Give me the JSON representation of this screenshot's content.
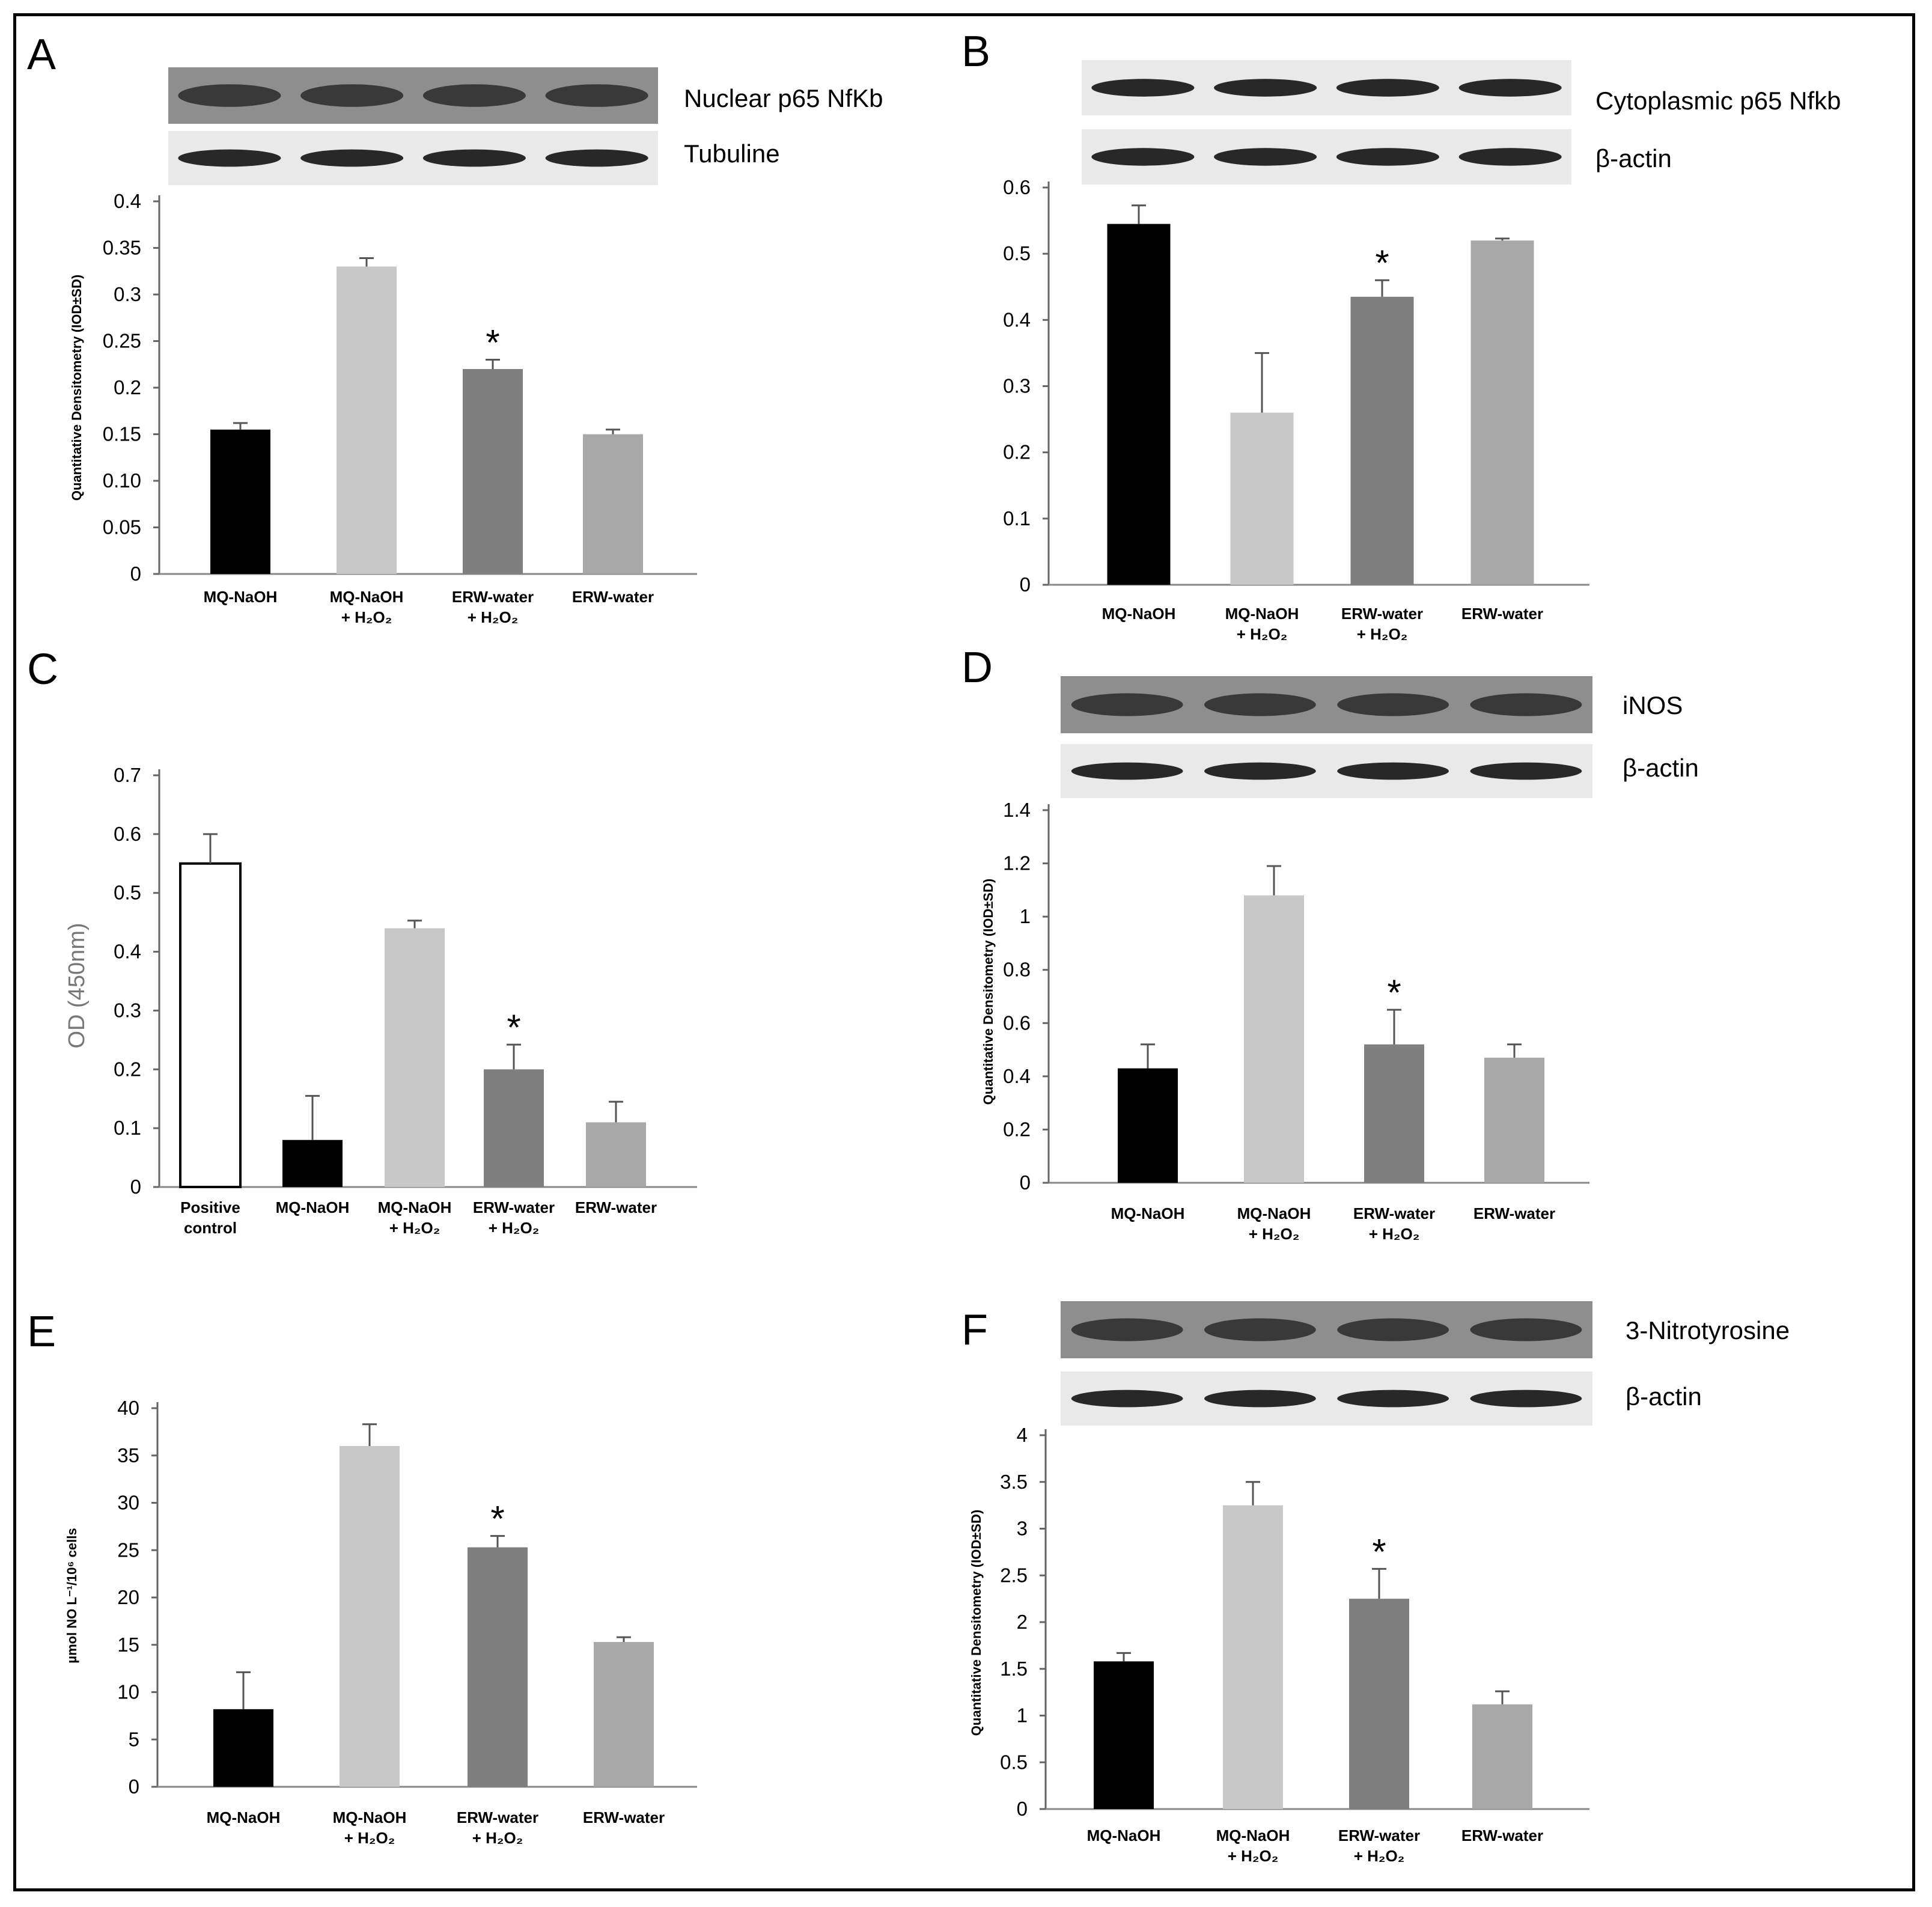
{
  "chart_data": [
    {
      "panel": "A",
      "type": "bar",
      "blots": [
        {
          "name": "Nuclear p65 NfKb"
        },
        {
          "name": "Tubuline"
        }
      ],
      "ylabel": "Quantitative Densitometry (IOD±SD)",
      "yticks": [
        "0",
        "0.05",
        "0.10",
        "0.15",
        "0.2",
        "0.25",
        "0.3",
        "0.35",
        "0.4"
      ],
      "ylim": [
        0,
        0.4
      ],
      "categories": [
        [
          "MQ-NaOH",
          ""
        ],
        [
          "MQ-NaOH",
          "+ H₂O₂"
        ],
        [
          "ERW-water",
          "+ H₂O₂"
        ],
        [
          "ERW-water",
          ""
        ]
      ],
      "values": [
        0.155,
        0.33,
        0.22,
        0.15
      ],
      "errors": [
        0.007,
        0.009,
        0.01,
        0.005
      ],
      "colors": [
        "#000000",
        "#c8c8c8",
        "#7f7f7f",
        "#a8a8a8"
      ],
      "significance": [
        "",
        "",
        "*",
        ""
      ]
    },
    {
      "panel": "B",
      "type": "bar",
      "blots": [
        {
          "name": "Cytoplasmic p65 Nfkb"
        },
        {
          "name": "β-actin"
        }
      ],
      "ylabel": "",
      "yticks": [
        "0",
        "0.1",
        "0.2",
        "0.3",
        "0.4",
        "0.5",
        "0.6"
      ],
      "ylim": [
        0,
        0.6
      ],
      "categories": [
        [
          "MQ-NaOH",
          ""
        ],
        [
          "MQ-NaOH",
          "+ H₂O₂"
        ],
        [
          "ERW-water",
          "+ H₂O₂"
        ],
        [
          "ERW-water",
          ""
        ]
      ],
      "values": [
        0.545,
        0.26,
        0.435,
        0.52
      ],
      "errors": [
        0.028,
        0.09,
        0.025,
        0.003
      ],
      "colors": [
        "#000000",
        "#c8c8c8",
        "#7f7f7f",
        "#a8a8a8"
      ],
      "significance": [
        "",
        "",
        "*",
        ""
      ]
    },
    {
      "panel": "C",
      "type": "bar",
      "blots": [],
      "ylabel": "OD (450nm)",
      "yticks": [
        "0",
        "0.1",
        "0.2",
        "0.3",
        "0.4",
        "0.5",
        "0.6",
        "0.7"
      ],
      "ylim": [
        0,
        0.7
      ],
      "categories": [
        [
          "Positive",
          "control"
        ],
        [
          "MQ-NaOH",
          ""
        ],
        [
          "MQ-NaOH",
          "+ H₂O₂"
        ],
        [
          "ERW-water",
          "+ H₂O₂"
        ],
        [
          "ERW-water",
          ""
        ]
      ],
      "values": [
        0.55,
        0.08,
        0.44,
        0.2,
        0.11
      ],
      "errors": [
        0.05,
        0.075,
        0.013,
        0.042,
        0.035
      ],
      "colors": [
        "#ffffff",
        "#000000",
        "#c8c8c8",
        "#7f7f7f",
        "#a8a8a8"
      ],
      "significance": [
        "",
        "",
        "",
        "*",
        ""
      ]
    },
    {
      "panel": "D",
      "type": "bar",
      "blots": [
        {
          "name": "iNOS"
        },
        {
          "name": "β-actin"
        }
      ],
      "ylabel": "Quantitative Densitometry (IOD±SD)",
      "yticks": [
        "0",
        "0.2",
        "0.4",
        "0.6",
        "0.8",
        "1",
        "1.2",
        "1.4"
      ],
      "ylim": [
        0,
        1.4
      ],
      "categories": [
        [
          "MQ-NaOH",
          ""
        ],
        [
          "MQ-NaOH",
          "+ H₂O₂"
        ],
        [
          "ERW-water",
          "+ H₂O₂"
        ],
        [
          "ERW-water",
          ""
        ]
      ],
      "values": [
        0.43,
        1.08,
        0.52,
        0.47
      ],
      "errors": [
        0.09,
        0.11,
        0.13,
        0.05
      ],
      "colors": [
        "#000000",
        "#c8c8c8",
        "#7f7f7f",
        "#a8a8a8"
      ],
      "significance": [
        "",
        "",
        "*",
        ""
      ]
    },
    {
      "panel": "E",
      "type": "bar",
      "blots": [],
      "ylabel": "µmol NO L⁻¹/10⁶ cells",
      "yticks": [
        "0",
        "5",
        "10",
        "15",
        "20",
        "25",
        "30",
        "35",
        "40"
      ],
      "ylim": [
        0,
        40
      ],
      "categories": [
        [
          "MQ-NaOH",
          ""
        ],
        [
          "MQ-NaOH",
          "+ H₂O₂"
        ],
        [
          "ERW-water",
          "+ H₂O₂"
        ],
        [
          "ERW-water",
          ""
        ]
      ],
      "values": [
        8.2,
        36,
        25.3,
        15.3
      ],
      "errors": [
        3.9,
        2.3,
        1.2,
        0.5
      ],
      "colors": [
        "#000000",
        "#c8c8c8",
        "#7f7f7f",
        "#a8a8a8"
      ],
      "significance": [
        "",
        "",
        "*",
        ""
      ]
    },
    {
      "panel": "F",
      "type": "bar",
      "blots": [
        {
          "name": "3-Nitrotyrosine"
        },
        {
          "name": "β-actin"
        }
      ],
      "ylabel": "Quantitative Densitometry (IOD±SD)",
      "yticks": [
        "0",
        "0.5",
        "1",
        "1.5",
        "2",
        "2.5",
        "3",
        "3.5",
        "4"
      ],
      "ylim": [
        0,
        4
      ],
      "categories": [
        [
          "MQ-NaOH",
          ""
        ],
        [
          "MQ-NaOH",
          "+ H₂O₂"
        ],
        [
          "ERW-water",
          "+ H₂O₂"
        ],
        [
          "ERW-water",
          ""
        ]
      ],
      "values": [
        1.58,
        3.25,
        2.25,
        1.12
      ],
      "errors": [
        0.09,
        0.25,
        0.32,
        0.14
      ],
      "colors": [
        "#000000",
        "#c8c8c8",
        "#7f7f7f",
        "#a8a8a8"
      ],
      "significance": [
        "",
        "",
        "*",
        ""
      ]
    }
  ]
}
